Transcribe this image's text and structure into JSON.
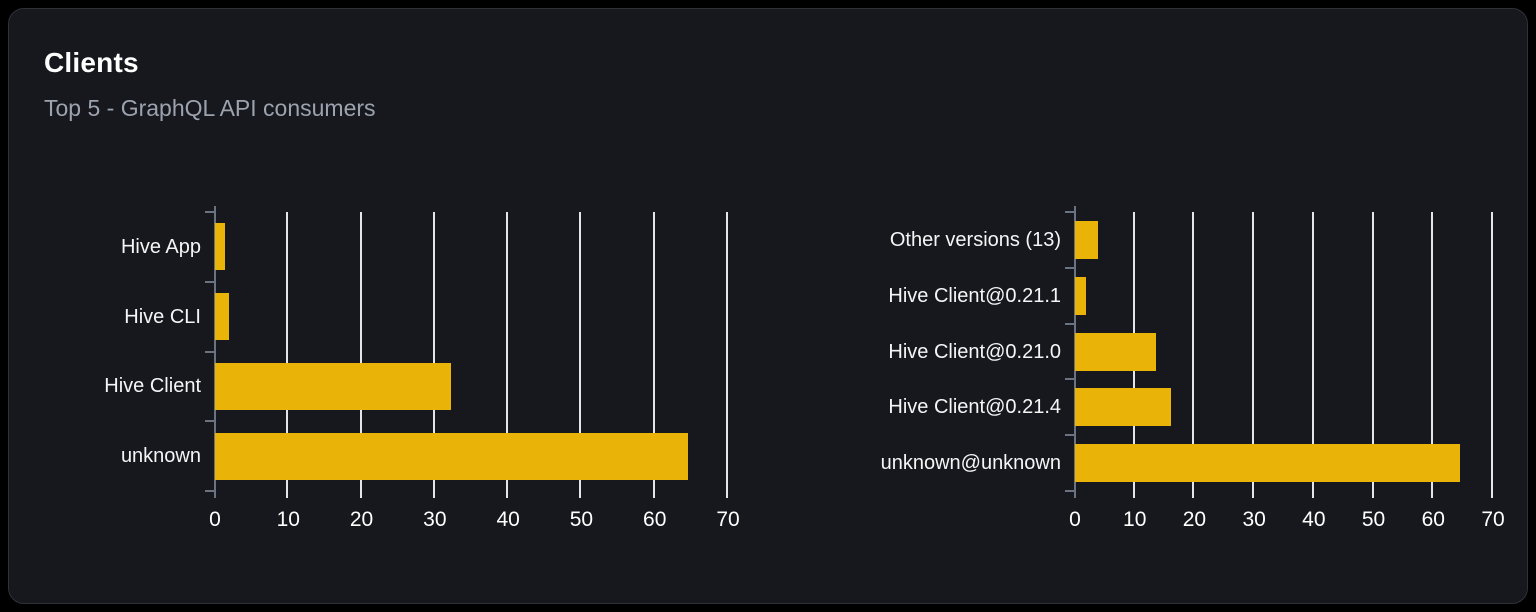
{
  "card": {
    "title": "Clients",
    "subtitle": "Top 5 - GraphQL API consumers"
  },
  "colors": {
    "page_bg": "#000000",
    "card_bg": "#16181d",
    "card_border": "#2e3138",
    "title": "#ffffff",
    "subtitle": "#9ca3af",
    "bar": "#eab308",
    "gridline": "#e2e5ea",
    "axis": "#6b7280",
    "label": "#f5f5f6",
    "tick_label": "#ffffff"
  },
  "chart_data": [
    {
      "type": "bar",
      "orientation": "horizontal",
      "name": "clients-by-name",
      "categories": [
        "Hive App",
        "Hive CLI",
        "Hive Client",
        "unknown"
      ],
      "values": [
        1.3,
        1.9,
        32.2,
        64.5
      ],
      "xlim": [
        0,
        70
      ],
      "x_ticks": [
        0,
        10,
        20,
        30,
        40,
        50,
        60,
        70
      ],
      "grid": true,
      "legend": false
    },
    {
      "type": "bar",
      "orientation": "horizontal",
      "name": "clients-by-version",
      "categories": [
        "Other versions (13)",
        "Hive Client@0.21.1",
        "Hive Client@0.21.0",
        "Hive Client@0.21.4",
        "unknown@unknown"
      ],
      "values": [
        3.9,
        1.8,
        13.5,
        16.1,
        64.5
      ],
      "xlim": [
        0,
        70
      ],
      "x_ticks": [
        0,
        10,
        20,
        30,
        40,
        50,
        60,
        70
      ],
      "grid": true,
      "legend": false
    }
  ]
}
